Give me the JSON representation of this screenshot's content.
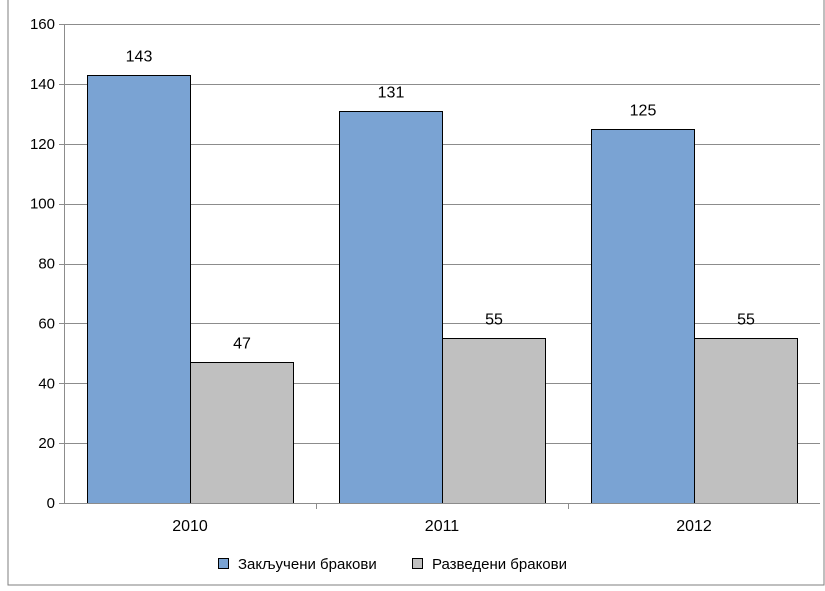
{
  "chart_data": {
    "type": "bar",
    "title": "",
    "xlabel": "",
    "ylabel": "",
    "categories": [
      "2010",
      "2011",
      "2012"
    ],
    "series": [
      {
        "name": "Закључени бракови",
        "values": [
          143,
          131,
          125
        ],
        "color": "#7aa3d3"
      },
      {
        "name": "Разведени бракови",
        "values": [
          47,
          55,
          55
        ],
        "color": "#c0c0c0"
      }
    ],
    "ylim": [
      0,
      160
    ],
    "yticks": [
      0,
      20,
      40,
      60,
      80,
      100,
      120,
      140,
      160
    ],
    "grid": true,
    "data_labels": true,
    "legend_position": "bottom"
  }
}
